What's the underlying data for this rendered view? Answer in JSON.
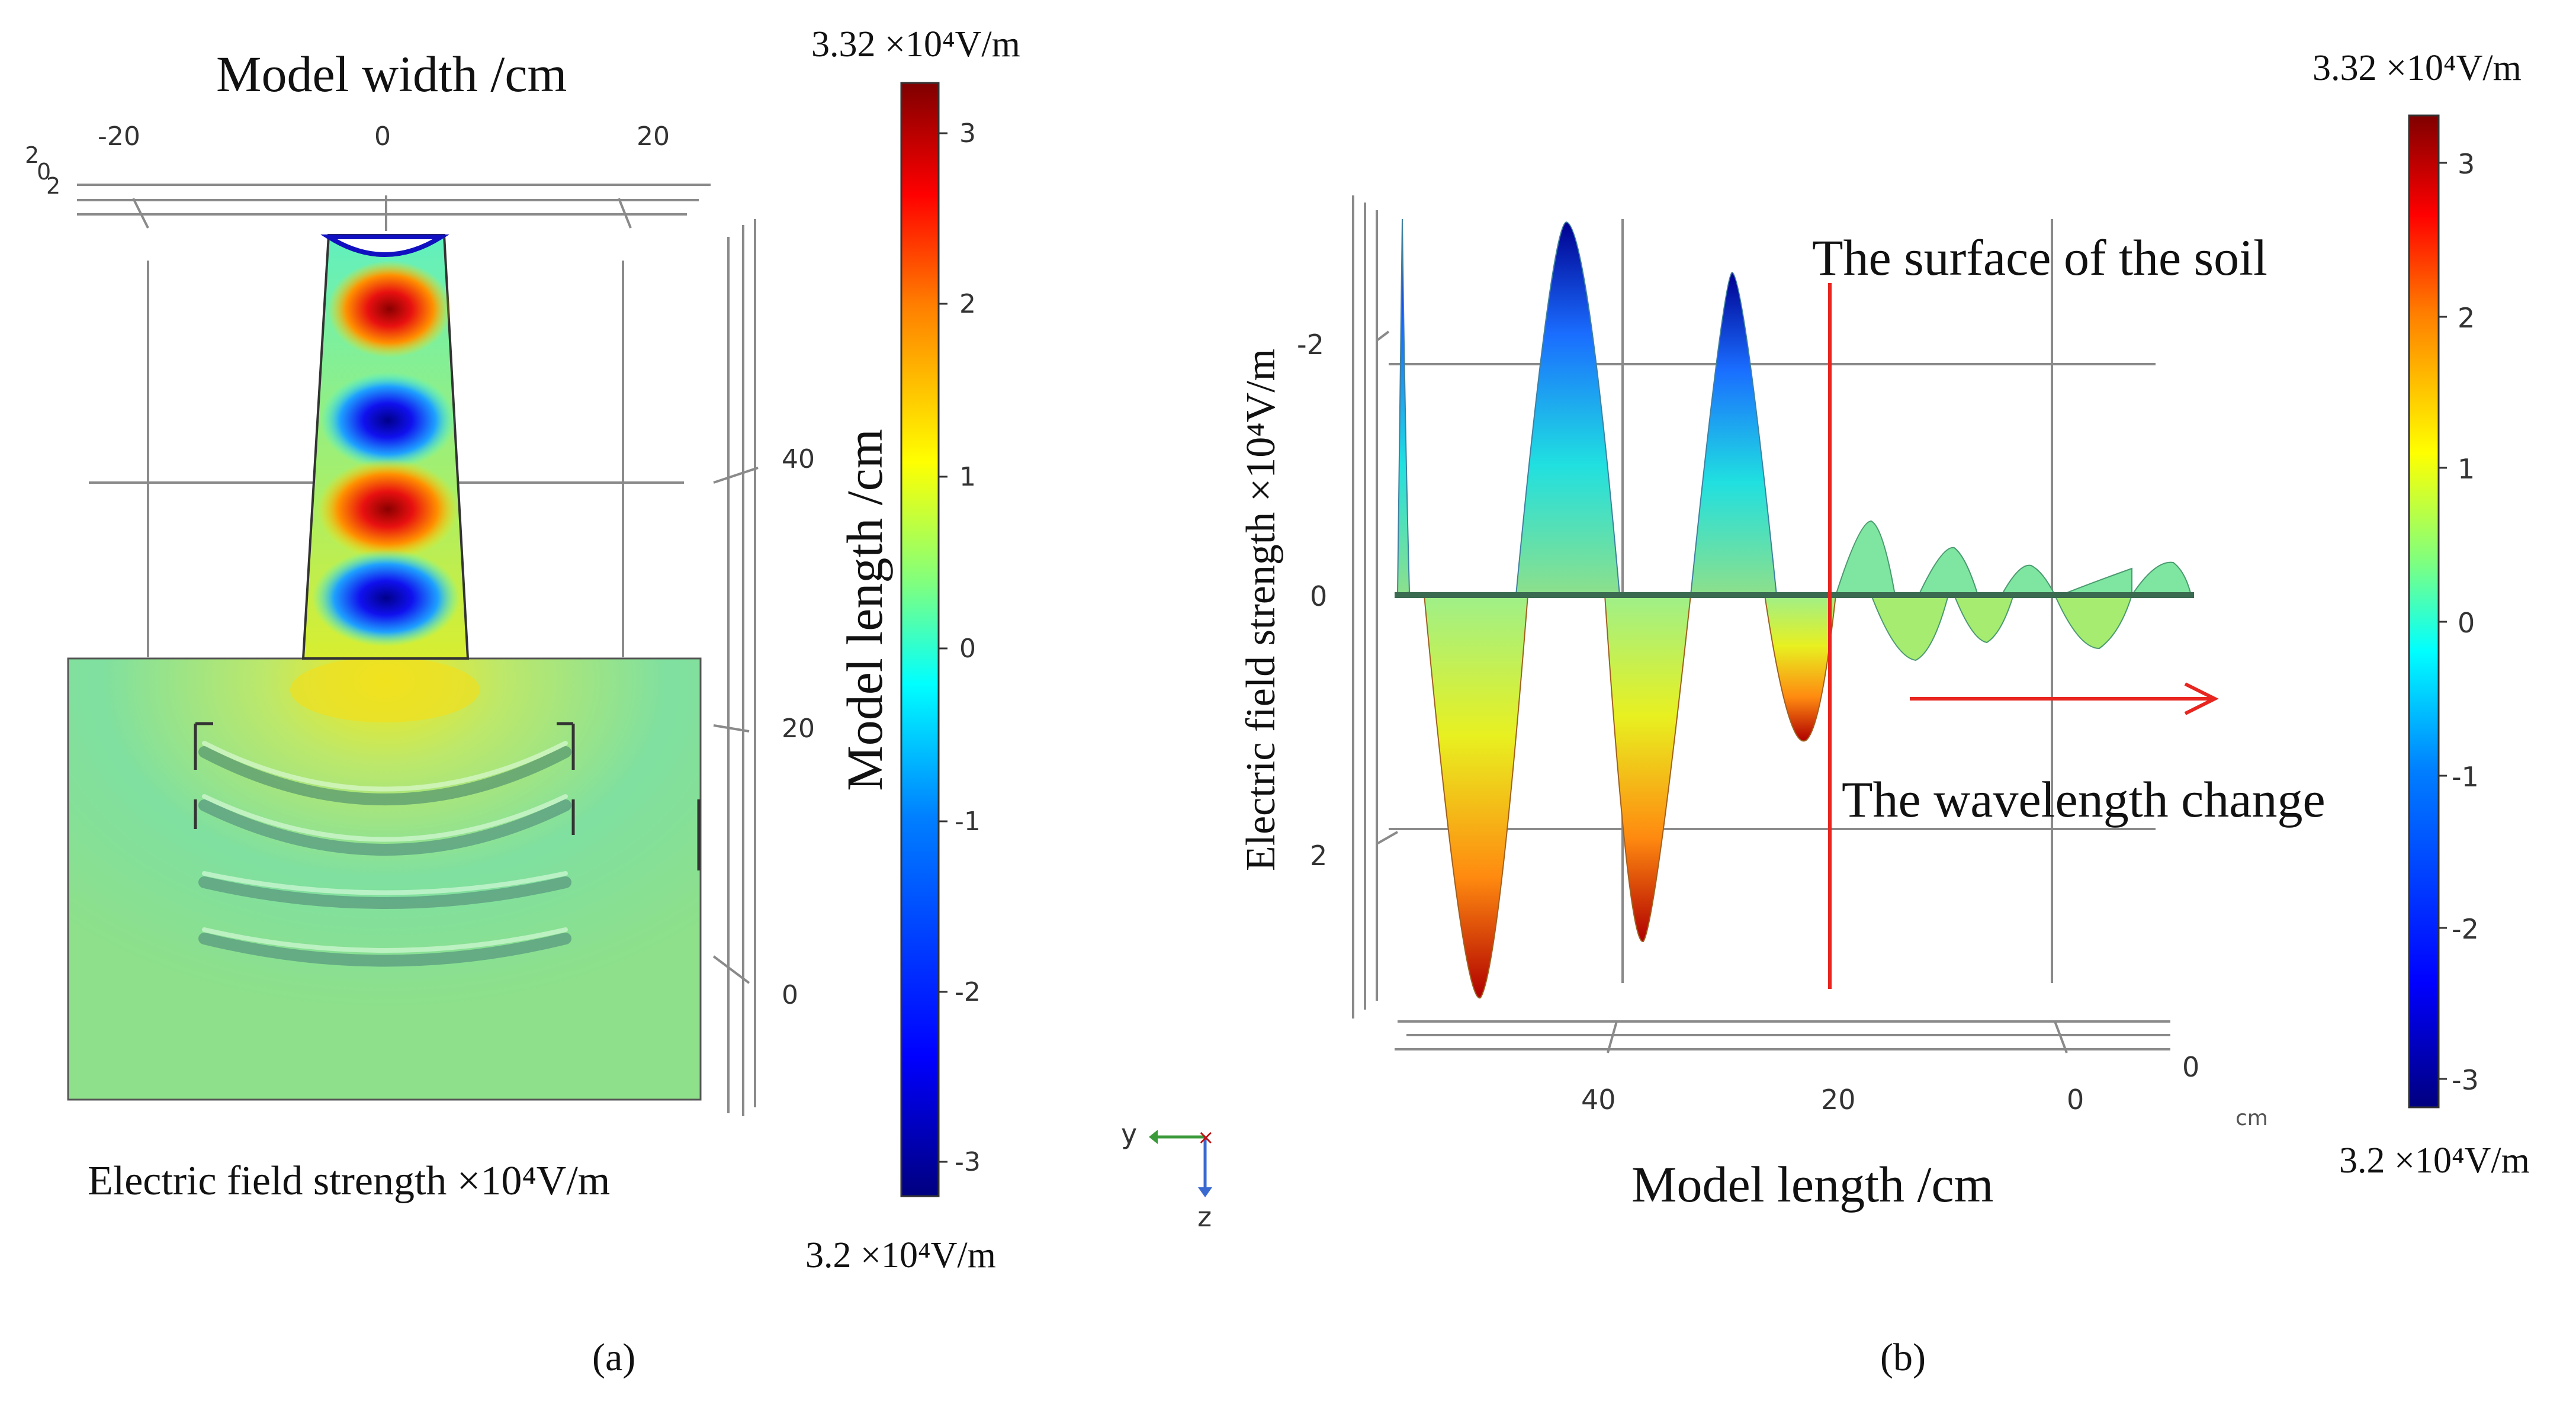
{
  "panel_a": {
    "title": "Model width /cm",
    "width_ticks": [
      "-20",
      "0",
      "20"
    ],
    "depth_ticks": [
      "2",
      "0",
      "2"
    ],
    "length_ticks": [
      "40",
      "20",
      "0"
    ],
    "axis_label_length": "Model length /cm",
    "quantity_label": "Electric field strength ×10⁴V/m",
    "colorbar": {
      "max_label": "3.32 ×10⁴V/m",
      "min_label": "3.2 ×10⁴V/m",
      "ticks": [
        "3",
        "2",
        "1",
        "0",
        "-1",
        "-2",
        "-3"
      ]
    },
    "caption": "(a)"
  },
  "panel_b": {
    "ylabel": "Electric field strength ×10⁴V/m",
    "yticks": [
      "-2",
      "0",
      "2"
    ],
    "xlabel": "Model length /cm",
    "xticks": [
      "40",
      "20",
      "0"
    ],
    "x_end_tick": "0",
    "x_unit": "cm",
    "annotation_surface": "The surface of the soil",
    "annotation_wavelength": "The wavelength change",
    "colorbar": {
      "max_label": "3.32 ×10⁴V/m",
      "min_label": "3.2 ×10⁴V/m",
      "ticks": [
        "3",
        "2",
        "1",
        "0",
        "-1",
        "-2",
        "-3"
      ]
    },
    "caption": "(b)"
  },
  "triad": {
    "y_label": "y",
    "z_label": "z"
  },
  "colors": {
    "jet": [
      "#00007f",
      "#0000ff",
      "#007fff",
      "#00ffff",
      "#7fff7f",
      "#ffff00",
      "#ff7f00",
      "#ff0000",
      "#7f0000"
    ],
    "soil_green": "#8ee08a",
    "annotation_red": "#e8251f",
    "grid": "#8a8a8a"
  }
}
